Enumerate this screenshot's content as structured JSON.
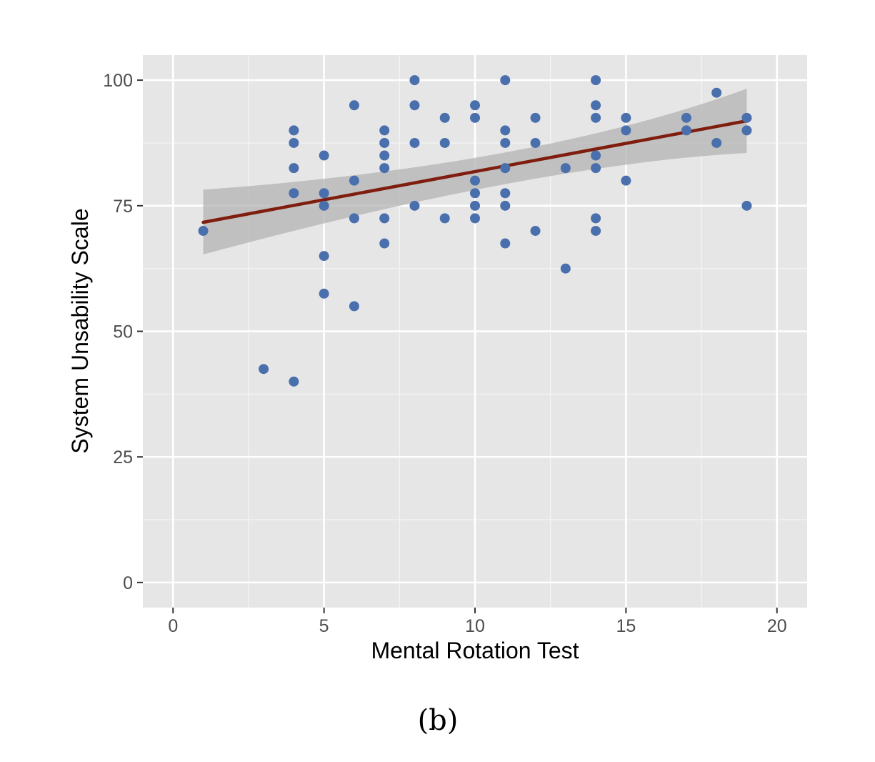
{
  "chart_data": {
    "type": "scatter",
    "title": "",
    "xlabel": "Mental Rotation Test",
    "ylabel": "System Unsability Scale",
    "caption": "(b)",
    "xlim": [
      -1,
      21
    ],
    "ylim": [
      -5,
      105
    ],
    "x_ticks": [
      0,
      5,
      10,
      15,
      20
    ],
    "x_tick_labels": [
      "0",
      "5",
      "10",
      "15",
      "20"
    ],
    "y_ticks": [
      0,
      25,
      50,
      75,
      100
    ],
    "y_tick_labels": [
      "0",
      "25",
      "50",
      "75",
      "100"
    ],
    "grid": true,
    "colors": {
      "panel_background": "#e6e6e6",
      "grid_major": "#ffffff",
      "grid_minor": "#f2f2f2",
      "points": "#4a6fad",
      "fit_line": "#7f1d0e",
      "confidence_band": "#b3b3b3",
      "tick_text": "#4d4d4d",
      "tick_mark": "#333333"
    },
    "series": [
      {
        "name": "participants",
        "points": [
          [
            1,
            70
          ],
          [
            3,
            42.5
          ],
          [
            4,
            90
          ],
          [
            4,
            87.5
          ],
          [
            4,
            82.5
          ],
          [
            4,
            77.5
          ],
          [
            4,
            40
          ],
          [
            5,
            85
          ],
          [
            5,
            77.5
          ],
          [
            5,
            75
          ],
          [
            5,
            65
          ],
          [
            5,
            57.5
          ],
          [
            6,
            95
          ],
          [
            6,
            80
          ],
          [
            6,
            72.5
          ],
          [
            6,
            55
          ],
          [
            7,
            90
          ],
          [
            7,
            87.5
          ],
          [
            7,
            85
          ],
          [
            7,
            82.5
          ],
          [
            7,
            72.5
          ],
          [
            7,
            67.5
          ],
          [
            8,
            100
          ],
          [
            8,
            95
          ],
          [
            8,
            87.5
          ],
          [
            8,
            75
          ],
          [
            9,
            92.5
          ],
          [
            9,
            87.5
          ],
          [
            9,
            72.5
          ],
          [
            10,
            95
          ],
          [
            10,
            92.5
          ],
          [
            10,
            80
          ],
          [
            10,
            77.5
          ],
          [
            10,
            75
          ],
          [
            10,
            72.5
          ],
          [
            11,
            100
          ],
          [
            11,
            90
          ],
          [
            11,
            87.5
          ],
          [
            11,
            82.5
          ],
          [
            11,
            77.5
          ],
          [
            11,
            75
          ],
          [
            11,
            67.5
          ],
          [
            12,
            92.5
          ],
          [
            12,
            87.5
          ],
          [
            12,
            70
          ],
          [
            13,
            82.5
          ],
          [
            13,
            62.5
          ],
          [
            14,
            100
          ],
          [
            14,
            95
          ],
          [
            14,
            92.5
          ],
          [
            14,
            85
          ],
          [
            14,
            82.5
          ],
          [
            14,
            72.5
          ],
          [
            14,
            70
          ],
          [
            15,
            92.5
          ],
          [
            15,
            90
          ],
          [
            15,
            80
          ],
          [
            17,
            92.5
          ],
          [
            17,
            90
          ],
          [
            18,
            97.5
          ],
          [
            18,
            87.5
          ],
          [
            19,
            92.5
          ],
          [
            19,
            90
          ],
          [
            19,
            75
          ]
        ]
      }
    ],
    "fit": {
      "method": "linear",
      "x": [
        1,
        19
      ],
      "y": [
        71.7,
        91.9
      ],
      "ci_lower": [
        65.3,
        85.5
      ],
      "ci_upper": [
        78.2,
        98.3
      ],
      "ci_mid_x": 11,
      "ci_mid": [
        79.3,
        85.6
      ]
    }
  }
}
